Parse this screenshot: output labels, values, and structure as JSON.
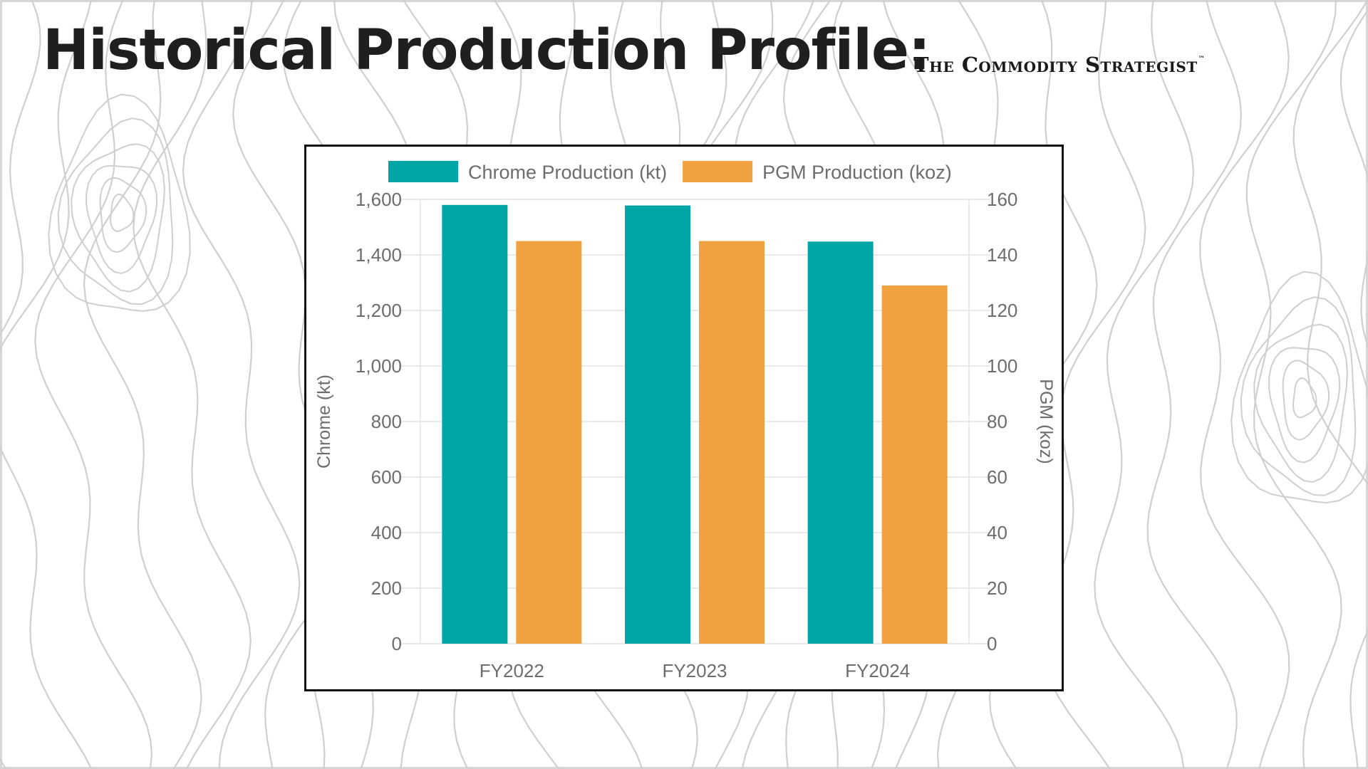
{
  "slide": {
    "title": "Historical Production Profile:",
    "brand": "The Commodity Strategist",
    "brand_mark": "™"
  },
  "colors": {
    "chrome": "#00a5a5",
    "pgm": "#f0a241",
    "grid": "#e3e3e3",
    "contour": "#cfcfcf"
  },
  "chart_data": {
    "type": "bar",
    "categories": [
      "FY2022",
      "FY2023",
      "FY2024"
    ],
    "series": [
      {
        "name": "Chrome Production (kt)",
        "axis": "left",
        "values": [
          1580,
          1578,
          1448
        ]
      },
      {
        "name": "PGM Production (koz)",
        "axis": "right",
        "values": [
          145,
          145,
          129
        ]
      }
    ],
    "ylabel": "Chrome (kt)",
    "y2label": "PGM (koz)",
    "ylim": [
      0,
      1600
    ],
    "y2lim": [
      0,
      160
    ],
    "yticks": [
      "0",
      "200",
      "400",
      "600",
      "800",
      "1,000",
      "1,200",
      "1,400",
      "1,600"
    ],
    "y2ticks": [
      "0",
      "20",
      "40",
      "60",
      "80",
      "100",
      "120",
      "140",
      "160"
    ],
    "grid": true,
    "legend": "top"
  }
}
